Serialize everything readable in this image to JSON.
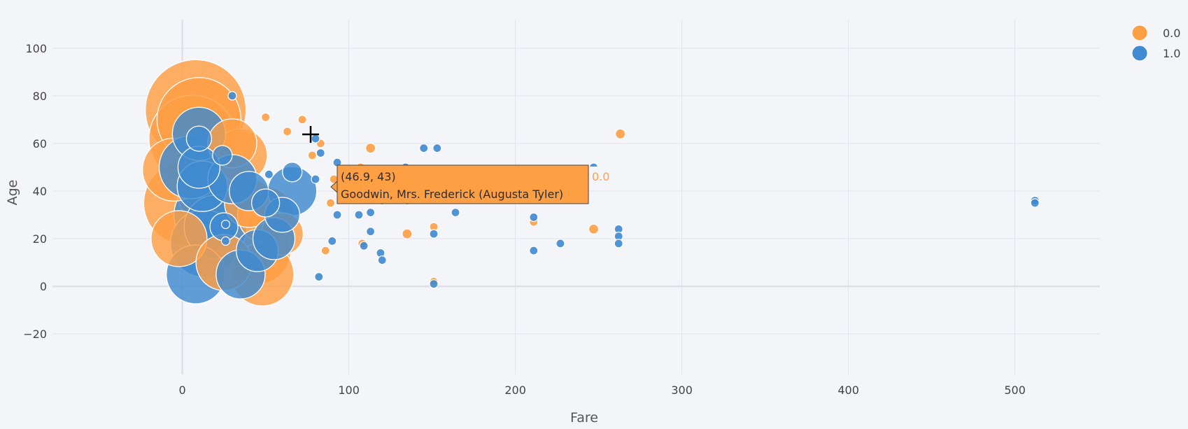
{
  "colors": {
    "series_0": "#ff9f44",
    "series_1": "#3f8ad0",
    "background": "#f4f5f9"
  },
  "tooltip": {
    "coords": "(46.9, 43)",
    "name": "Goodwin, Mrs. Frederick (Augusta Tyler)",
    "series_label": "0.0"
  },
  "chart_data": {
    "type": "scatter",
    "xlabel": "Fare",
    "ylabel": "Age",
    "xlim": [
      -78,
      551
    ],
    "ylim": [
      -37,
      112
    ],
    "xticks": [
      0,
      100,
      200,
      300,
      400,
      500
    ],
    "yticks": [
      -20,
      0,
      20,
      40,
      60,
      80,
      100
    ],
    "grid": true,
    "legend_position": "top-right",
    "series": [
      {
        "name": "0.0",
        "points": [
          [
            8,
            74,
            72
          ],
          [
            10,
            70,
            60
          ],
          [
            6,
            62,
            62
          ],
          [
            -5,
            49,
            45
          ],
          [
            2,
            35,
            60
          ],
          [
            -2,
            20,
            40
          ],
          [
            45,
            15,
            48
          ],
          [
            48,
            5,
            45
          ],
          [
            20,
            40,
            55
          ],
          [
            35,
            55,
            38
          ],
          [
            50,
            30,
            40
          ],
          [
            30,
            60,
            35
          ],
          [
            60,
            22,
            30
          ],
          [
            40,
            35,
            35
          ],
          [
            25,
            10,
            40
          ],
          [
            50,
            71,
            6
          ],
          [
            72,
            70,
            6
          ],
          [
            63,
            65,
            6
          ],
          [
            83,
            60,
            6
          ],
          [
            78,
            55,
            6
          ],
          [
            107,
            50,
            6
          ],
          [
            113,
            58,
            7
          ],
          [
            135,
            22,
            7
          ],
          [
            151,
            25,
            6
          ],
          [
            151,
            2,
            6
          ],
          [
            211,
            27,
            6
          ],
          [
            247,
            24,
            7
          ],
          [
            263,
            64,
            7
          ],
          [
            91,
            45,
            6
          ],
          [
            89,
            35,
            6
          ],
          [
            86,
            15,
            6
          ],
          [
            108,
            18,
            6
          ]
        ]
      },
      {
        "name": "1.0",
        "points": [
          [
            10,
            64,
            38
          ],
          [
            10,
            62,
            18
          ],
          [
            16,
            30,
            50
          ],
          [
            13,
            18,
            48
          ],
          [
            8,
            5,
            42
          ],
          [
            12,
            42,
            36
          ],
          [
            5,
            50,
            45
          ],
          [
            20,
            25,
            45
          ],
          [
            24,
            55,
            14
          ],
          [
            25,
            25,
            20
          ],
          [
            30,
            45,
            35
          ],
          [
            45,
            15,
            30
          ],
          [
            55,
            20,
            30
          ],
          [
            66,
            40,
            35
          ],
          [
            66,
            48,
            14
          ],
          [
            35,
            5,
            35
          ],
          [
            60,
            30,
            25
          ],
          [
            10,
            50,
            30
          ],
          [
            40,
            40,
            28
          ],
          [
            50,
            35,
            20
          ],
          [
            30,
            80,
            6
          ],
          [
            26,
            26,
            6
          ],
          [
            26,
            19,
            6
          ],
          [
            52,
            47,
            6
          ],
          [
            80,
            62,
            6
          ],
          [
            83,
            56,
            6
          ],
          [
            80,
            45,
            6
          ],
          [
            82,
            4,
            6
          ],
          [
            93,
            52,
            6
          ],
          [
            93,
            30,
            6
          ],
          [
            90,
            19,
            6
          ],
          [
            106,
            30,
            6
          ],
          [
            109,
            17,
            6
          ],
          [
            113,
            31,
            6
          ],
          [
            113,
            23,
            6
          ],
          [
            119,
            14,
            6
          ],
          [
            120,
            11,
            6
          ],
          [
            120,
            36,
            6
          ],
          [
            134,
            50,
            6
          ],
          [
            135,
            36,
            6
          ],
          [
            145,
            58,
            6
          ],
          [
            153,
            58,
            6
          ],
          [
            151,
            22,
            6
          ],
          [
            151,
            1,
            6
          ],
          [
            164,
            31,
            6
          ],
          [
            211,
            29,
            6
          ],
          [
            211,
            15,
            6
          ],
          [
            227,
            18,
            6
          ],
          [
            247,
            50,
            6
          ],
          [
            262,
            24,
            6
          ],
          [
            262,
            21,
            6
          ],
          [
            262,
            18,
            6
          ],
          [
            512,
            36,
            6
          ],
          [
            512,
            35,
            6
          ]
        ]
      }
    ]
  }
}
